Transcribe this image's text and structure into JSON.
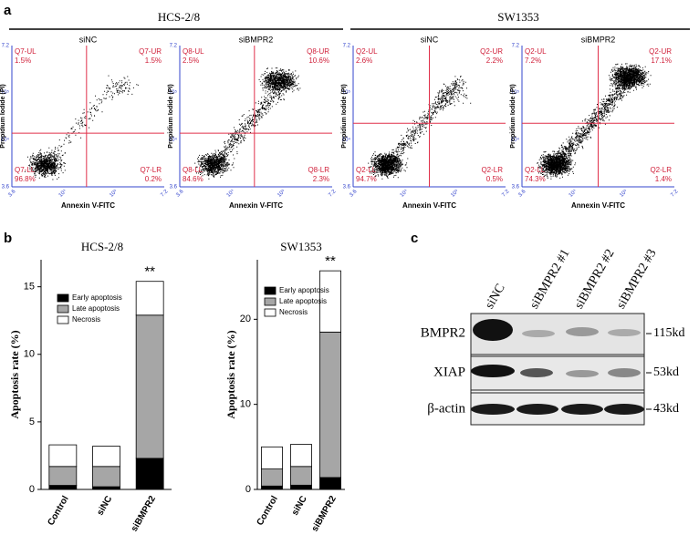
{
  "panel_labels": [
    "a",
    "b",
    "c"
  ],
  "panel_a": {
    "groups": [
      "HCS-2/8",
      "SW1353"
    ],
    "x_axis_label": "Annexin V-FITC",
    "y_axis_label": "Propidium Iodide (PI)",
    "tick_labels": [
      "3.6",
      "10⁴",
      "10⁵",
      "7.2"
    ],
    "plots": [
      {
        "title": "siNC",
        "quadrants": [
          {
            "name": "Q7-UL",
            "value": "1.5%"
          },
          {
            "name": "Q7-UR",
            "value": "1.5%"
          },
          {
            "name": "Q7-LL",
            "value": "96.8%"
          },
          {
            "name": "Q7-LR",
            "value": "0.2%"
          }
        ]
      },
      {
        "title": "siBMPR2",
        "quadrants": [
          {
            "name": "Q8-UL",
            "value": "2.5%"
          },
          {
            "name": "Q8-UR",
            "value": "10.6%"
          },
          {
            "name": "Q8-LL",
            "value": "84.6%"
          },
          {
            "name": "Q8-LR",
            "value": "2.3%"
          }
        ]
      },
      {
        "title": "siNC",
        "quadrants": [
          {
            "name": "Q2-UL",
            "value": "2.6%"
          },
          {
            "name": "Q2-UR",
            "value": "2.2%"
          },
          {
            "name": "Q2-LL",
            "value": "94.7%"
          },
          {
            "name": "Q2-LR",
            "value": "0.5%"
          }
        ]
      },
      {
        "title": "siBMPR2",
        "quadrants": [
          {
            "name": "Q2-UL",
            "value": "7.2%"
          },
          {
            "name": "Q2-UR",
            "value": "17.1%"
          },
          {
            "name": "Q2-LL",
            "value": "74.3%"
          },
          {
            "name": "Q2-LR",
            "value": "1.4%"
          }
        ]
      }
    ]
  },
  "chart_data": [
    {
      "type": "bar",
      "stacked": true,
      "title": "HCS-2/8",
      "ylabel": "Apoptosis rate (%)",
      "annotation": "**",
      "legend": "upper left",
      "categories": [
        "Control",
        "siNC",
        "siBMPR2"
      ],
      "series": [
        {
          "name": "Early apoptosis",
          "color": "#000000",
          "values": [
            0.3,
            0.2,
            2.3
          ]
        },
        {
          "name": "Late apoptosis",
          "color": "#a6a6a6",
          "values": [
            1.4,
            1.5,
            10.6
          ]
        },
        {
          "name": "Necrosis",
          "color": "#ffffff",
          "values": [
            1.6,
            1.5,
            2.5
          ]
        }
      ],
      "ylim": [
        0,
        17
      ],
      "yticks": [
        0,
        5,
        10,
        15
      ]
    },
    {
      "type": "bar",
      "stacked": true,
      "title": "SW1353",
      "ylabel": "Apoptosis rate (%)",
      "annotation": "**",
      "legend": "upper left",
      "categories": [
        "Control",
        "siNC",
        "siBMPR2"
      ],
      "series": [
        {
          "name": "Early apoptosis",
          "color": "#000000",
          "values": [
            0.4,
            0.5,
            1.4
          ]
        },
        {
          "name": "Late apoptosis",
          "color": "#a6a6a6",
          "values": [
            2.0,
            2.2,
            17.1
          ]
        },
        {
          "name": "Necrosis",
          "color": "#ffffff",
          "values": [
            2.6,
            2.6,
            7.2
          ]
        }
      ],
      "ylim": [
        0,
        27
      ],
      "yticks": [
        0,
        10,
        20
      ]
    }
  ],
  "panel_c": {
    "lanes": [
      "siNC",
      "siBMPR2 #1",
      "siBMPR2 #2",
      "siBMPR2 #3"
    ],
    "rows": [
      {
        "name": "BMPR2",
        "size": "115kd"
      },
      {
        "name": "XIAP",
        "size": "53kd"
      },
      {
        "name": "β-actin",
        "size": "43kd"
      }
    ]
  }
}
